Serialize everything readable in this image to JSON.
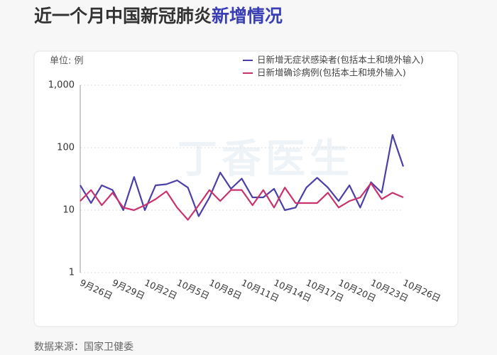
{
  "chart_data": {
    "type": "line",
    "title_parts": [
      "近一个月中国新冠肺炎",
      "新增情况"
    ],
    "title_colors": [
      "#333333",
      "#3b3fb6"
    ],
    "unit_label": "单位: 例",
    "watermark": "丁香医生",
    "source": "数据来源：国家卫健委",
    "categories": [
      "9月26日",
      null,
      null,
      "9月29日",
      null,
      null,
      "10月2日",
      null,
      null,
      "10月5日",
      null,
      null,
      "10月8日",
      null,
      null,
      "10月11日",
      null,
      null,
      "10月14日",
      null,
      null,
      "10月17日",
      null,
      null,
      "10月20日",
      null,
      null,
      "10月23日",
      null,
      null,
      "10月26日"
    ],
    "series": [
      {
        "name": "日新增无症状感染者(包括本土和境外输入)",
        "color": "#4b3fa8",
        "values": [
          25,
          13,
          25,
          21,
          10,
          34,
          10,
          25,
          26,
          30,
          23,
          8,
          16,
          40,
          22,
          32,
          16,
          16,
          22,
          10,
          11,
          23,
          33,
          23,
          14,
          25,
          11,
          28,
          19,
          160,
          50
        ]
      },
      {
        "name": "日新增确诊病例(包括本土和境外输入)",
        "color": "#c8336e",
        "values": [
          14,
          21,
          12,
          19,
          11,
          10,
          12,
          15,
          20,
          11,
          7,
          12,
          21,
          14,
          21,
          21,
          12,
          21,
          11,
          23,
          13,
          13,
          13,
          19,
          11,
          14,
          16,
          27,
          15,
          19,
          16
        ]
      }
    ],
    "log_scale": true,
    "ylim": [
      1,
      1000
    ],
    "yticks": [
      1,
      10,
      100,
      {
        "value": 1000,
        "label": "1,000"
      }
    ],
    "grid": true
  }
}
